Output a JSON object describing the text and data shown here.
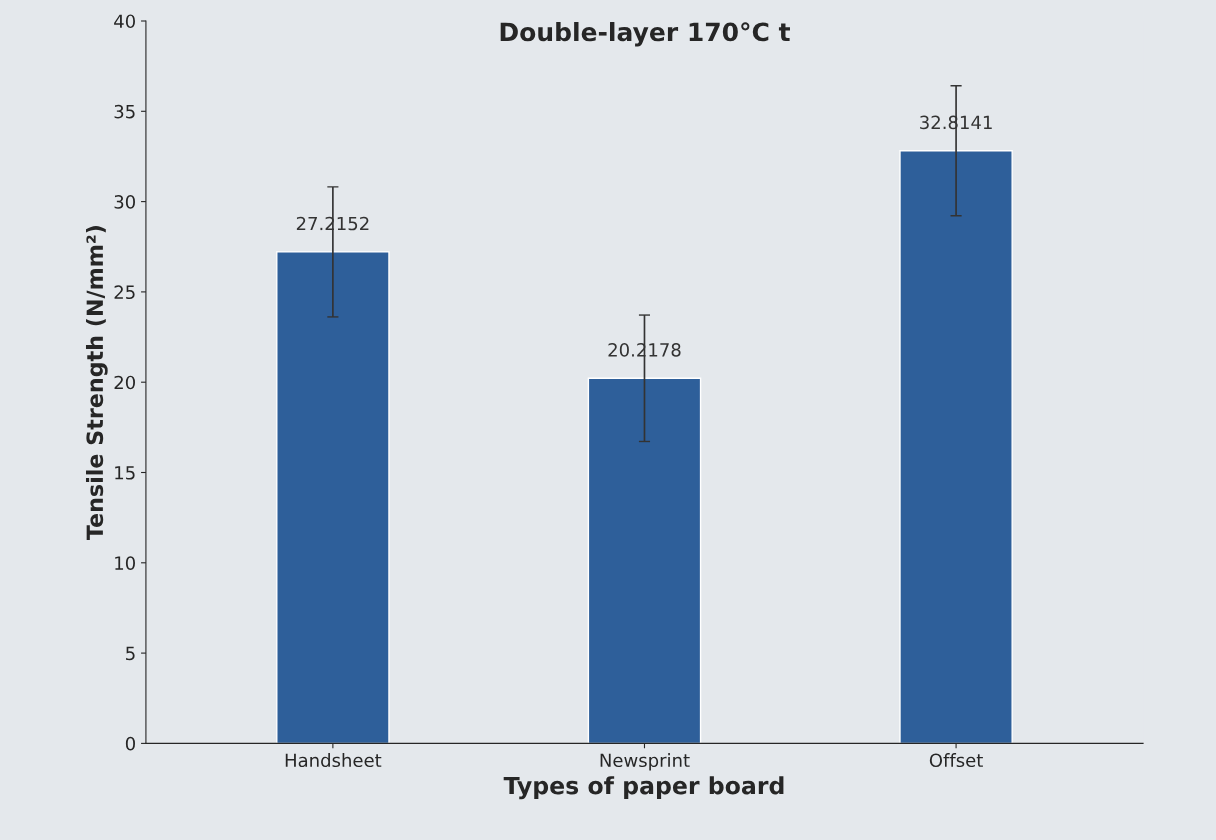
{
  "chart_data": {
    "type": "bar",
    "title": "Double-layer 170°C t",
    "xlabel": "Types of paper board",
    "ylabel": "Tensile Strength (N/mm²)",
    "categories": [
      "Handsheet",
      "Newsprint",
      "Offset"
    ],
    "values": [
      27.2152,
      20.2178,
      32.8141
    ],
    "errors": [
      3.6,
      3.5,
      3.6
    ],
    "color": "#2e5f9a",
    "data_labels": true,
    "ylim": [
      0,
      40
    ],
    "yticks": [
      0,
      5,
      10,
      15,
      20,
      25,
      30,
      35,
      40
    ],
    "grid": false,
    "legend": false
  }
}
